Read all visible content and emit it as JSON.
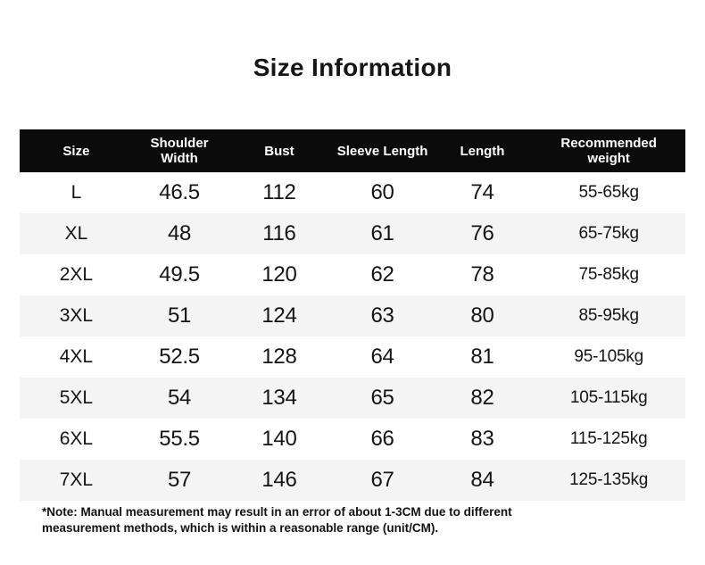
{
  "title": "Size Information",
  "colors": {
    "background": "#ffffff",
    "header_bg": "#0b0b0b",
    "header_text": "#ffffff",
    "row_alt_bg": "#f4f4f4",
    "body_text": "#141414"
  },
  "table": {
    "headers": {
      "size": "Size",
      "shoulder_width": "Shoulder\nWidth",
      "bust": "Bust",
      "sleeve_length": "Sleeve Length",
      "length": "Length",
      "recommended_weight": "Recommended\nweight"
    },
    "rows": [
      {
        "size": "L",
        "shoulder_width": "46.5",
        "bust": "112",
        "sleeve_length": "60",
        "length": "74",
        "recommended_weight": "55-65kg"
      },
      {
        "size": "XL",
        "shoulder_width": "48",
        "bust": "116",
        "sleeve_length": "61",
        "length": "76",
        "recommended_weight": "65-75kg"
      },
      {
        "size": "2XL",
        "shoulder_width": "49.5",
        "bust": "120",
        "sleeve_length": "62",
        "length": "78",
        "recommended_weight": "75-85kg"
      },
      {
        "size": "3XL",
        "shoulder_width": "51",
        "bust": "124",
        "sleeve_length": "63",
        "length": "80",
        "recommended_weight": "85-95kg"
      },
      {
        "size": "4XL",
        "shoulder_width": "52.5",
        "bust": "128",
        "sleeve_length": "64",
        "length": "81",
        "recommended_weight": "95-105kg"
      },
      {
        "size": "5XL",
        "shoulder_width": "54",
        "bust": "134",
        "sleeve_length": "65",
        "length": "82",
        "recommended_weight": "105-115kg"
      },
      {
        "size": "6XL",
        "shoulder_width": "55.5",
        "bust": "140",
        "sleeve_length": "66",
        "length": "83",
        "recommended_weight": "115-125kg"
      },
      {
        "size": "7XL",
        "shoulder_width": "57",
        "bust": "146",
        "sleeve_length": "67",
        "length": "84",
        "recommended_weight": "125-135kg"
      }
    ]
  },
  "note": "*Note: Manual measurement may result in an error of about 1-3CM due to different measurement methods, which is within a reasonable range (unit/CM).",
  "chart_data": {
    "type": "table",
    "title": "Size Information",
    "columns": [
      "Size",
      "Shoulder Width",
      "Bust",
      "Sleeve Length",
      "Length",
      "Recommended weight"
    ],
    "rows": [
      [
        "L",
        46.5,
        112,
        60,
        74,
        "55-65kg"
      ],
      [
        "XL",
        48,
        116,
        61,
        76,
        "65-75kg"
      ],
      [
        "2XL",
        49.5,
        120,
        62,
        78,
        "75-85kg"
      ],
      [
        "3XL",
        51,
        124,
        63,
        80,
        "85-95kg"
      ],
      [
        "4XL",
        52.5,
        128,
        64,
        81,
        "95-105kg"
      ],
      [
        "5XL",
        54,
        134,
        65,
        82,
        "105-115kg"
      ],
      [
        "6XL",
        55.5,
        140,
        66,
        83,
        "115-125kg"
      ],
      [
        "7XL",
        57,
        146,
        67,
        84,
        "125-135kg"
      ]
    ],
    "unit": "CM",
    "note": "*Note: Manual measurement may result in an error of about 1-3CM due to different measurement methods, which is within a reasonable range (unit/CM)."
  }
}
